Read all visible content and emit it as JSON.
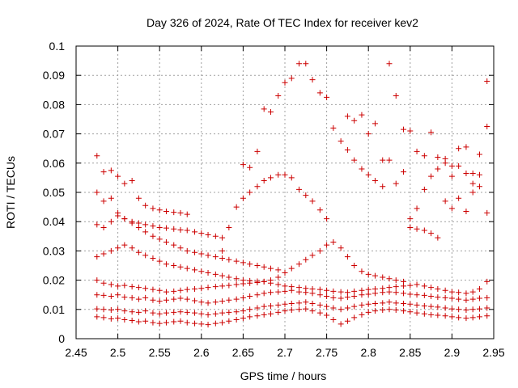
{
  "chart_data": {
    "type": "scatter",
    "title": "Day 326 of 2024, Rate Of TEC Index for receiver kev2",
    "xlabel": "GPS time / hours",
    "ylabel": "ROTI / TECUs",
    "xlim": [
      2.45,
      2.95
    ],
    "ylim": [
      0,
      0.1
    ],
    "x_ticks": [
      "2.45",
      "2.5",
      "2.55",
      "2.6",
      "2.65",
      "2.7",
      "2.75",
      "2.8",
      "2.85",
      "2.9",
      "2.95"
    ],
    "y_ticks": [
      "0",
      "0.01",
      "0.02",
      "0.03",
      "0.04",
      "0.05",
      "0.06",
      "0.07",
      "0.08",
      "0.09",
      "0.1"
    ],
    "grid": true,
    "marker": "+",
    "color": "#cc0000",
    "series": [
      {
        "x": [
          2.475,
          2.483,
          2.492,
          2.5,
          2.508,
          2.517,
          2.525,
          2.533,
          2.542,
          2.55,
          2.558,
          2.567,
          2.575,
          2.583,
          2.592,
          2.6,
          2.608,
          2.617,
          2.625,
          2.633,
          2.642,
          2.65,
          2.658,
          2.667,
          2.675,
          2.683,
          2.692,
          2.7,
          2.708,
          2.717,
          2.725,
          2.733,
          2.742,
          2.75,
          2.758,
          2.767,
          2.775,
          2.783,
          2.792,
          2.8,
          2.808,
          2.817,
          2.825,
          2.833,
          2.842,
          2.85,
          2.858,
          2.867,
          2.875,
          2.883,
          2.892,
          2.9,
          2.908,
          2.917,
          2.925,
          2.933,
          2.942
        ],
        "y": [
          0.0075,
          0.0072,
          0.0068,
          0.007,
          0.0065,
          0.0062,
          0.0058,
          0.006,
          0.0055,
          0.0052,
          0.0055,
          0.0058,
          0.006,
          0.0055,
          0.0052,
          0.005,
          0.0048,
          0.0052,
          0.0055,
          0.006,
          0.0065,
          0.007,
          0.0075,
          0.0078,
          0.0082,
          0.0085,
          0.009,
          0.0095,
          0.0098,
          0.01,
          0.0102,
          0.0095,
          0.0088,
          0.008,
          0.0065,
          0.005,
          0.006,
          0.0072,
          0.0082,
          0.009,
          0.0095,
          0.0098,
          0.01,
          0.0098,
          0.0095,
          0.0092,
          0.0088,
          0.0085,
          0.0082,
          0.008,
          0.0078,
          0.0075,
          0.0072,
          0.007,
          0.0072,
          0.0075,
          0.0078
        ]
      },
      {
        "x": [
          2.475,
          2.483,
          2.492,
          2.5,
          2.508,
          2.517,
          2.525,
          2.533,
          2.542,
          2.55,
          2.558,
          2.567,
          2.575,
          2.583,
          2.592,
          2.6,
          2.608,
          2.617,
          2.625,
          2.633,
          2.642,
          2.65,
          2.658,
          2.667,
          2.675,
          2.683,
          2.692,
          2.7,
          2.708,
          2.717,
          2.725,
          2.733,
          2.742,
          2.75,
          2.758,
          2.767,
          2.775,
          2.783,
          2.792,
          2.8,
          2.808,
          2.817,
          2.825,
          2.833,
          2.842,
          2.85,
          2.858,
          2.867,
          2.875,
          2.883,
          2.892,
          2.9,
          2.908,
          2.917,
          2.925,
          2.933,
          2.942
        ],
        "y": [
          0.0102,
          0.01,
          0.0098,
          0.01,
          0.0095,
          0.0092,
          0.009,
          0.0095,
          0.0088,
          0.0085,
          0.0088,
          0.009,
          0.0092,
          0.009,
          0.0088,
          0.0085,
          0.0082,
          0.0085,
          0.0088,
          0.009,
          0.0092,
          0.0095,
          0.01,
          0.0105,
          0.011,
          0.0112,
          0.0115,
          0.0118,
          0.012,
          0.0122,
          0.0125,
          0.012,
          0.0115,
          0.011,
          0.0105,
          0.01,
          0.0105,
          0.011,
          0.0115,
          0.0118,
          0.012,
          0.0122,
          0.0125,
          0.0122,
          0.012,
          0.0118,
          0.0115,
          0.0112,
          0.011,
          0.0108,
          0.0105,
          0.0102,
          0.01,
          0.0098,
          0.01,
          0.0102,
          0.0105
        ]
      },
      {
        "x": [
          2.475,
          2.483,
          2.492,
          2.5,
          2.508,
          2.517,
          2.525,
          2.533,
          2.542,
          2.55,
          2.558,
          2.567,
          2.575,
          2.583,
          2.592,
          2.6,
          2.608,
          2.617,
          2.625,
          2.633,
          2.642,
          2.65,
          2.658,
          2.667,
          2.675,
          2.683,
          2.692,
          2.7,
          2.708,
          2.717,
          2.725,
          2.733,
          2.742,
          2.75,
          2.758,
          2.767,
          2.775,
          2.783,
          2.792,
          2.8,
          2.808,
          2.817,
          2.825,
          2.833,
          2.842,
          2.85,
          2.858,
          2.867,
          2.875,
          2.883,
          2.892,
          2.9,
          2.908,
          2.917,
          2.925,
          2.933,
          2.942
        ],
        "y": [
          0.015,
          0.0148,
          0.0145,
          0.015,
          0.0142,
          0.014,
          0.0135,
          0.014,
          0.0132,
          0.0128,
          0.0132,
          0.0135,
          0.0138,
          0.0135,
          0.013,
          0.0125,
          0.0122,
          0.0125,
          0.0128,
          0.0132,
          0.0135,
          0.014,
          0.0145,
          0.015,
          0.0155,
          0.0158,
          0.016,
          0.0162,
          0.0165,
          0.016,
          0.0158,
          0.0155,
          0.015,
          0.0145,
          0.014,
          0.0138,
          0.0142,
          0.0145,
          0.015,
          0.0152,
          0.0155,
          0.0158,
          0.016,
          0.0158,
          0.0155,
          0.0152,
          0.015,
          0.0148,
          0.0145,
          0.0142,
          0.014,
          0.0138,
          0.0135,
          0.0132,
          0.0135,
          0.0138,
          0.014
        ]
      },
      {
        "x": [
          2.475,
          2.483,
          2.492,
          2.5,
          2.508,
          2.517,
          2.525,
          2.533,
          2.542,
          2.55,
          2.558,
          2.567,
          2.575,
          2.583,
          2.592,
          2.6,
          2.608,
          2.617,
          2.625,
          2.633,
          2.642,
          2.65,
          2.658,
          2.667,
          2.675,
          2.683,
          2.692,
          2.7,
          2.708,
          2.717,
          2.725,
          2.733,
          2.742,
          2.75,
          2.758,
          2.767,
          2.775,
          2.783,
          2.792,
          2.8,
          2.808,
          2.817,
          2.825,
          2.833,
          2.842,
          2.85,
          2.858,
          2.867,
          2.875,
          2.883,
          2.892,
          2.9,
          2.908,
          2.917,
          2.925,
          2.933,
          2.942
        ],
        "y": [
          0.02,
          0.019,
          0.0185,
          0.018,
          0.0182,
          0.0178,
          0.0175,
          0.0172,
          0.0168,
          0.0165,
          0.016,
          0.0162,
          0.0165,
          0.0168,
          0.017,
          0.0172,
          0.0175,
          0.0178,
          0.018,
          0.0182,
          0.0185,
          0.0188,
          0.019,
          0.0192,
          0.0195,
          0.019,
          0.0185,
          0.018,
          0.0178,
          0.0175,
          0.0172,
          0.017,
          0.0168,
          0.0165,
          0.0162,
          0.016,
          0.0158,
          0.0162,
          0.0165,
          0.0168,
          0.017,
          0.0172,
          0.0175,
          0.0178,
          0.018,
          0.0182,
          0.0185,
          0.018,
          0.0175,
          0.017,
          0.0165,
          0.016,
          0.0158,
          0.0155,
          0.016,
          0.017,
          0.0195
        ]
      },
      {
        "x": [
          2.475,
          2.483,
          2.492,
          2.5,
          2.508,
          2.517,
          2.525,
          2.533,
          2.542,
          2.55,
          2.558,
          2.567,
          2.575,
          2.583,
          2.592,
          2.6,
          2.608,
          2.617,
          2.625,
          2.633,
          2.642,
          2.65,
          2.658,
          2.667,
          2.675,
          2.683,
          2.692,
          2.7,
          2.708,
          2.717,
          2.725,
          2.733,
          2.742,
          2.75,
          2.758,
          2.767,
          2.775,
          2.783,
          2.792,
          2.8,
          2.808,
          2.817,
          2.825,
          2.833,
          2.842
        ],
        "y": [
          0.028,
          0.029,
          0.03,
          0.031,
          0.032,
          0.031,
          0.0295,
          0.0285,
          0.0275,
          0.0265,
          0.0255,
          0.025,
          0.0245,
          0.024,
          0.0235,
          0.023,
          0.0225,
          0.022,
          0.0215,
          0.021,
          0.0205,
          0.02,
          0.0198,
          0.0196,
          0.0195,
          0.02,
          0.021,
          0.0225,
          0.024,
          0.0255,
          0.027,
          0.0285,
          0.03,
          0.032,
          0.033,
          0.031,
          0.028,
          0.025,
          0.023,
          0.022,
          0.0215,
          0.021,
          0.0205,
          0.02,
          0.0195
        ]
      },
      {
        "x": [
          2.475,
          2.483,
          2.492,
          2.5,
          2.508,
          2.517,
          2.525,
          2.533,
          2.542,
          2.55,
          2.558,
          2.567,
          2.575,
          2.583,
          2.592,
          2.6,
          2.608,
          2.617,
          2.625,
          2.633,
          2.642,
          2.65,
          2.658,
          2.667,
          2.675,
          2.683,
          2.692
        ],
        "y": [
          0.039,
          0.038,
          0.04,
          0.042,
          0.041,
          0.0395,
          0.038,
          0.0365,
          0.035,
          0.034,
          0.033,
          0.032,
          0.031,
          0.03,
          0.0295,
          0.029,
          0.0285,
          0.028,
          0.0275,
          0.027,
          0.0265,
          0.026,
          0.0255,
          0.025,
          0.0245,
          0.024,
          0.0235
        ]
      },
      {
        "x": [
          2.475,
          2.483,
          2.492,
          2.5,
          2.508,
          2.517,
          2.525,
          2.533,
          2.542,
          2.55,
          2.558,
          2.567,
          2.575,
          2.583,
          2.592,
          2.6,
          2.608,
          2.617,
          2.625
        ],
        "y": [
          0.05,
          0.047,
          0.048,
          0.043,
          0.041,
          0.04,
          0.0395,
          0.039,
          0.0385,
          0.038,
          0.0378,
          0.0375,
          0.0372,
          0.037,
          0.0365,
          0.036,
          0.0355,
          0.035,
          0.0345
        ]
      },
      {
        "x": [
          2.475,
          2.483,
          2.492,
          2.5,
          2.508,
          2.517,
          2.525,
          2.533,
          2.542,
          2.55,
          2.558,
          2.567,
          2.575,
          2.583
        ],
        "y": [
          0.0625,
          0.057,
          0.0575,
          0.0555,
          0.053,
          0.054,
          0.048,
          0.0455,
          0.0445,
          0.044,
          0.0435,
          0.0432,
          0.043,
          0.0425
        ]
      },
      {
        "x": [
          2.625,
          2.633,
          2.642,
          2.65,
          2.658,
          2.667,
          2.675,
          2.683,
          2.692,
          2.7,
          2.708,
          2.717,
          2.725,
          2.733,
          2.742,
          2.75
        ],
        "y": [
          0.03,
          0.038,
          0.045,
          0.048,
          0.05,
          0.052,
          0.054,
          0.055,
          0.056,
          0.056,
          0.055,
          0.051,
          0.049,
          0.047,
          0.044,
          0.041
        ]
      },
      {
        "x": [
          2.65,
          2.658,
          2.667,
          2.675,
          2.683,
          2.692,
          2.7,
          2.708,
          2.717,
          2.725,
          2.733,
          2.742,
          2.75,
          2.758,
          2.767,
          2.775,
          2.783,
          2.792,
          2.8,
          2.808,
          2.817,
          2.825,
          2.833
        ],
        "y": [
          0.0595,
          0.0585,
          0.064,
          0.0785,
          0.0775,
          0.083,
          0.0875,
          0.089,
          0.094,
          0.094,
          0.0885,
          0.084,
          0.0825,
          0.072,
          0.0675,
          0.0645,
          0.061,
          0.058,
          0.056,
          0.054,
          0.052,
          0.094,
          0.083
        ]
      },
      {
        "x": [
          2.775,
          2.783,
          2.792,
          2.8,
          2.808,
          2.817,
          2.825,
          2.833,
          2.842,
          2.85,
          2.858,
          2.867,
          2.875,
          2.883,
          2.892,
          2.9,
          2.908,
          2.917,
          2.925,
          2.933,
          2.942
        ],
        "y": [
          0.076,
          0.0745,
          0.0765,
          0.07,
          0.0735,
          0.061,
          0.061,
          0.053,
          0.0715,
          0.071,
          0.064,
          0.0625,
          0.0705,
          0.062,
          0.0615,
          0.059,
          0.065,
          0.0655,
          0.0565,
          0.063,
          0.088
        ]
      },
      {
        "x": [
          2.842,
          2.85,
          2.858,
          2.867,
          2.875,
          2.883,
          2.892,
          2.9,
          2.908,
          2.917,
          2.925,
          2.933,
          2.942
        ],
        "y": [
          0.057,
          0.041,
          0.0445,
          0.051,
          0.0555,
          0.058,
          0.06,
          0.0555,
          0.059,
          0.0565,
          0.053,
          0.056,
          0.0725
        ]
      },
      {
        "x": [
          2.85,
          2.858,
          2.867,
          2.875,
          2.883,
          2.892,
          2.9,
          2.908,
          2.917,
          2.925,
          2.933,
          2.942
        ],
        "y": [
          0.038,
          0.0375,
          0.037,
          0.036,
          0.0345,
          0.047,
          0.0445,
          0.048,
          0.0435,
          0.05,
          0.052,
          0.043
        ]
      }
    ]
  }
}
